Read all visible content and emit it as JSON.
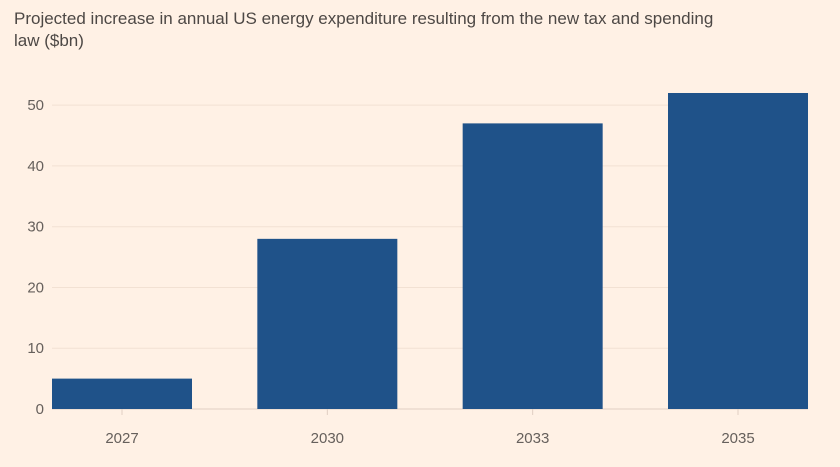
{
  "chart_data": {
    "type": "bar",
    "title": "Projected increase in annual US energy expenditure resulting from the new tax and spending law ($bn)",
    "xlabel": "",
    "ylabel": "",
    "categories": [
      "2027",
      "2030",
      "2033",
      "2035"
    ],
    "values": [
      5,
      28,
      47,
      52
    ],
    "ylim": [
      0,
      52
    ],
    "yticks": [
      0,
      10,
      20,
      30,
      40,
      50
    ],
    "grid": true,
    "legend": "none",
    "colors": {
      "bar": "#1f5289",
      "grid": "#f2e1d3",
      "baseline": "#e0cfc2",
      "background": "#fff1e5"
    }
  }
}
